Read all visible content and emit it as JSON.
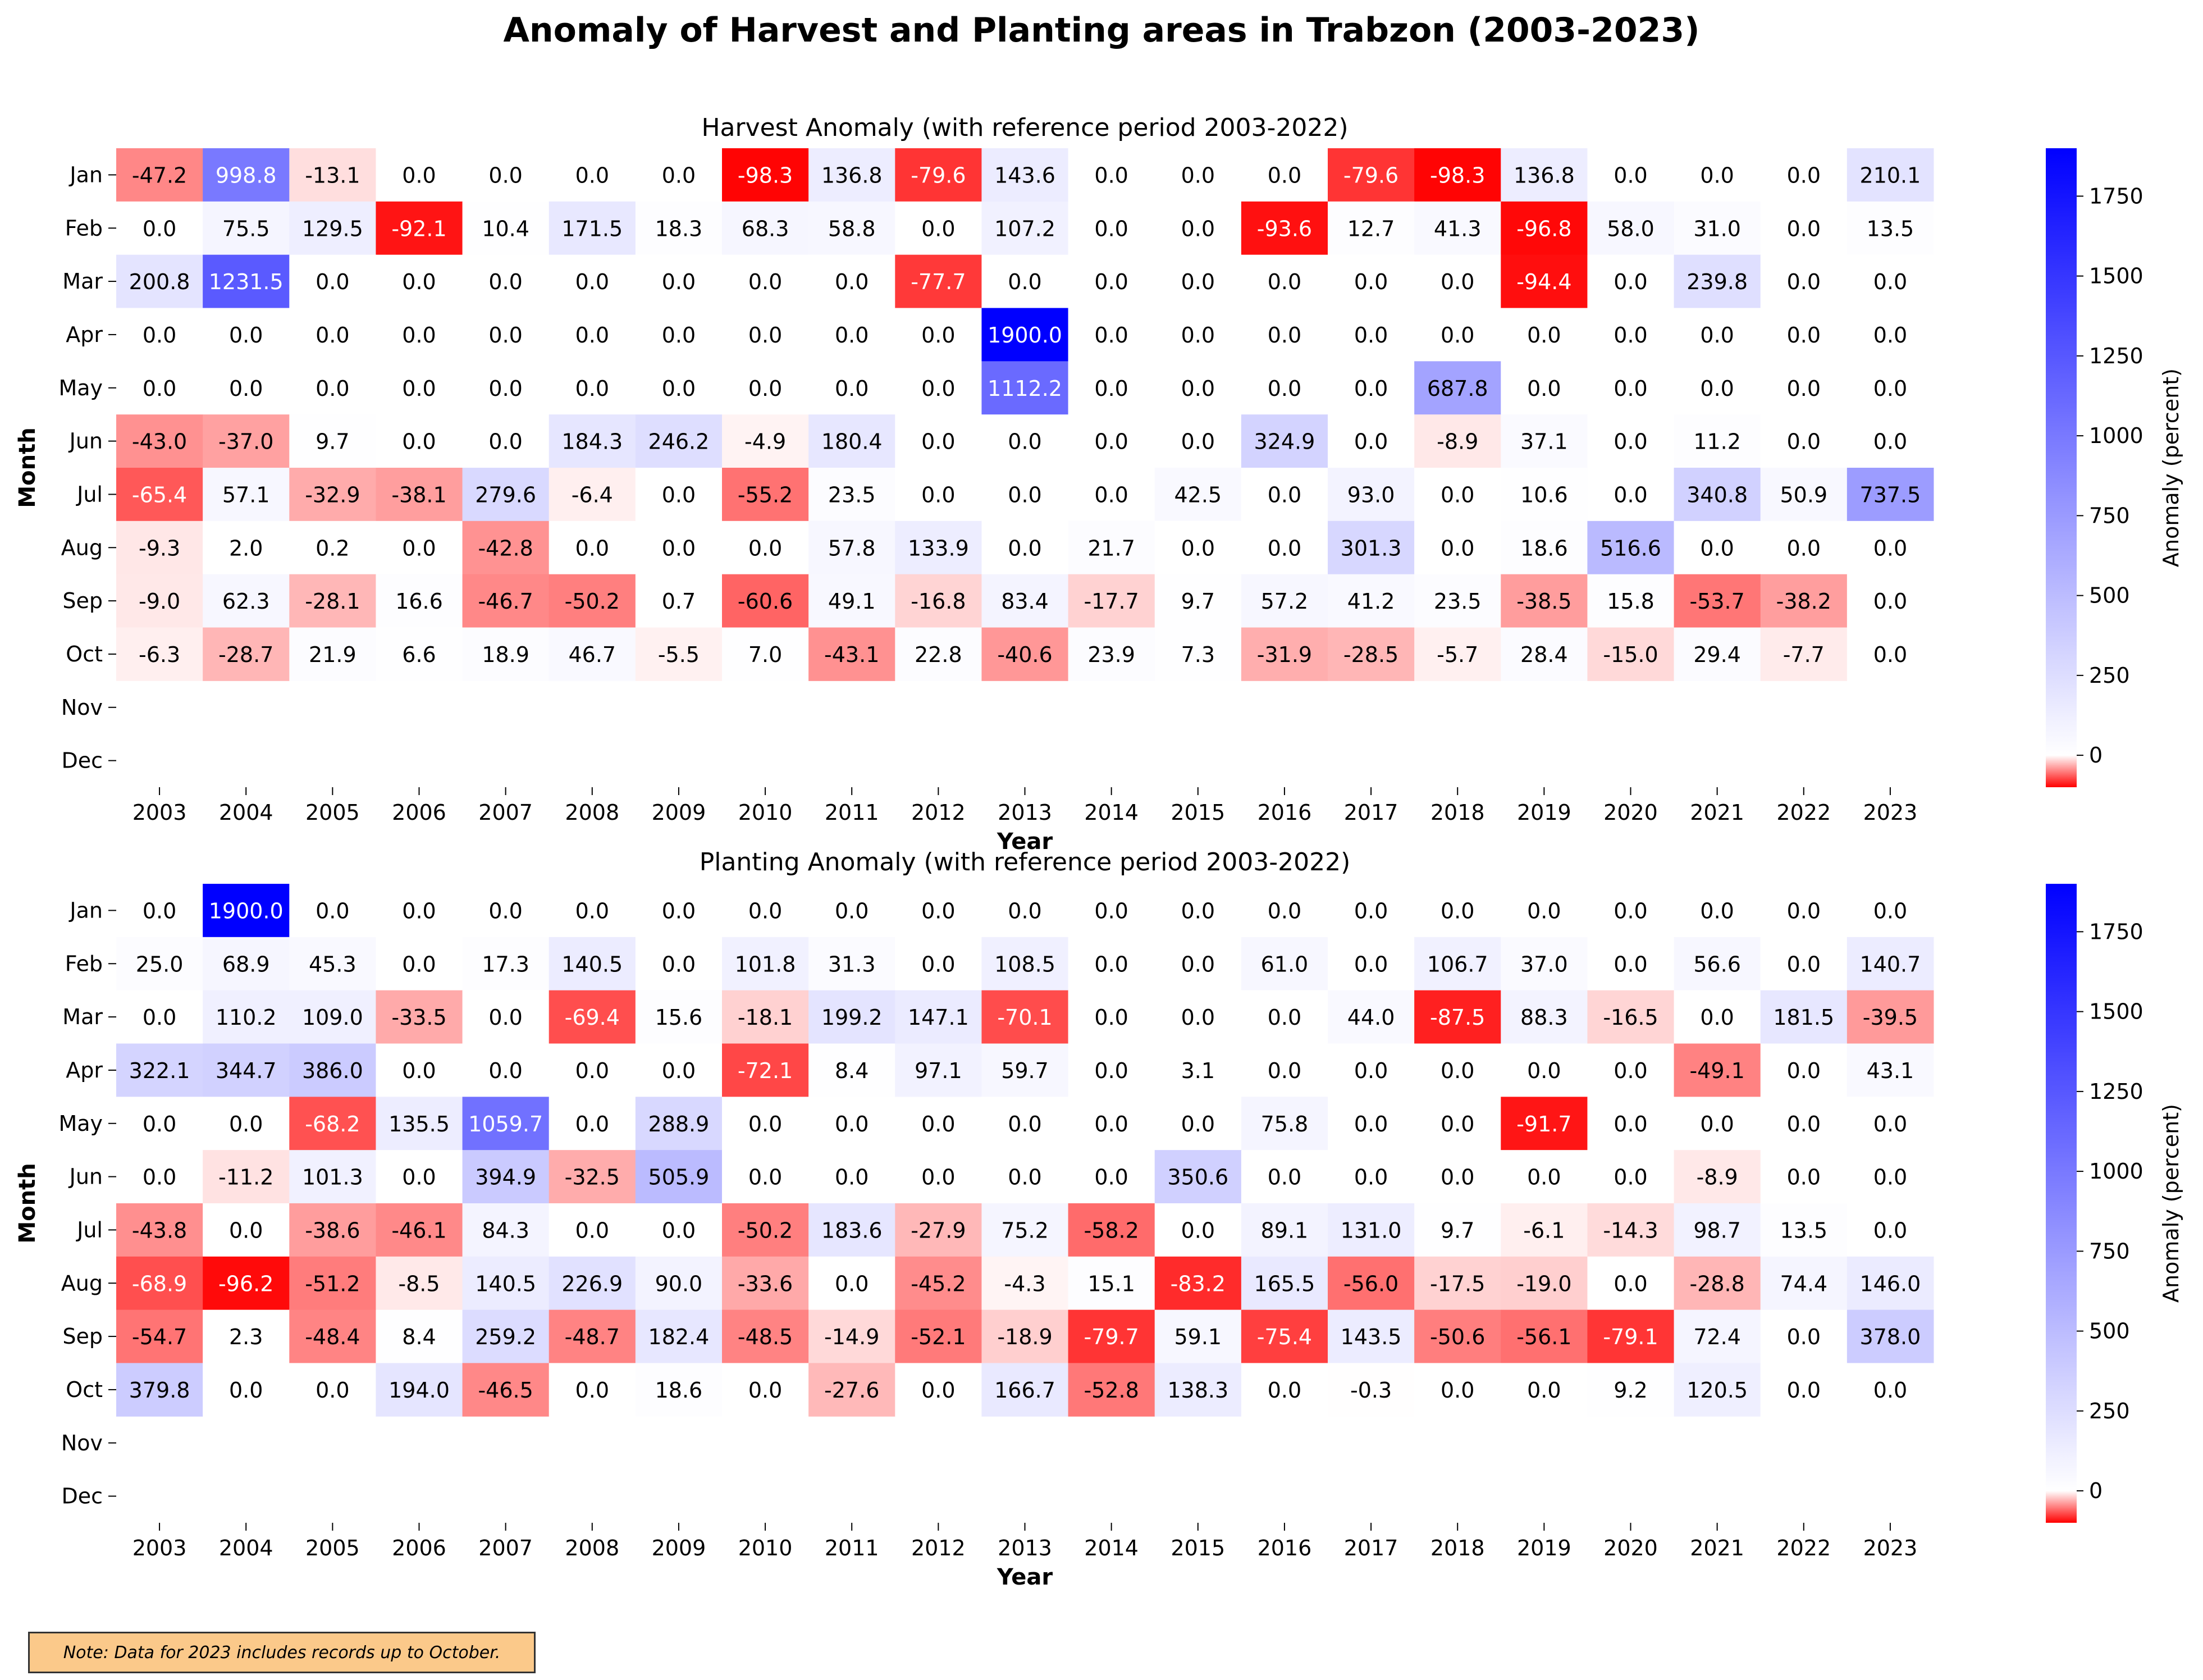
{
  "figure": {
    "title": "Anomaly of Harvest and Planting areas in Trabzon (2003-2023)",
    "note": "Note: Data for 2023 includes records up to October."
  },
  "colors": {
    "negative": "#ff0000",
    "zero": "#ffffff",
    "positive": "#0000ff"
  },
  "chart_data": [
    {
      "type": "heatmap",
      "title": "Harvest Anomaly (with reference period 2003-2022)",
      "xlabel": "Year",
      "ylabel": "Month",
      "colorbar_label": "Anomaly (percent)",
      "colorbar_ticks": [
        "0",
        "250",
        "500",
        "750",
        "1000",
        "1250",
        "1500",
        "1750"
      ],
      "vmin": -100,
      "vmax": 1900,
      "x": [
        "2003",
        "2004",
        "2005",
        "2006",
        "2007",
        "2008",
        "2009",
        "2010",
        "2011",
        "2012",
        "2013",
        "2014",
        "2015",
        "2016",
        "2017",
        "2018",
        "2019",
        "2020",
        "2021",
        "2022",
        "2023"
      ],
      "y": [
        "Jan",
        "Feb",
        "Mar",
        "Apr",
        "May",
        "Jun",
        "Jul",
        "Aug",
        "Sep",
        "Oct",
        "Nov",
        "Dec"
      ],
      "values": [
        [
          -47.2,
          998.8,
          -13.1,
          0.0,
          0.0,
          0.0,
          0.0,
          -98.3,
          136.8,
          -79.6,
          143.6,
          0.0,
          0.0,
          0.0,
          -79.6,
          -98.3,
          136.8,
          0.0,
          0.0,
          0.0,
          210.1
        ],
        [
          0.0,
          75.5,
          129.5,
          -92.1,
          10.4,
          171.5,
          18.3,
          68.3,
          58.8,
          0.0,
          107.2,
          0.0,
          0.0,
          -93.6,
          12.7,
          41.3,
          -96.8,
          58.0,
          31.0,
          0.0,
          13.5
        ],
        [
          200.8,
          1231.5,
          0.0,
          0.0,
          0.0,
          0.0,
          0.0,
          0.0,
          0.0,
          -77.7,
          0.0,
          0.0,
          0.0,
          0.0,
          0.0,
          0.0,
          -94.4,
          0.0,
          239.8,
          0.0,
          0.0
        ],
        [
          0.0,
          0.0,
          0.0,
          0.0,
          0.0,
          0.0,
          0.0,
          0.0,
          0.0,
          0.0,
          1900.0,
          0.0,
          0.0,
          0.0,
          0.0,
          0.0,
          0.0,
          0.0,
          0.0,
          0.0,
          0.0
        ],
        [
          0.0,
          0.0,
          0.0,
          0.0,
          0.0,
          0.0,
          0.0,
          0.0,
          0.0,
          0.0,
          1112.2,
          0.0,
          0.0,
          0.0,
          0.0,
          687.8,
          0.0,
          0.0,
          0.0,
          0.0,
          0.0
        ],
        [
          -43.0,
          -37.0,
          9.7,
          0.0,
          0.0,
          184.3,
          246.2,
          -4.9,
          180.4,
          0.0,
          0.0,
          0.0,
          0.0,
          324.9,
          0.0,
          -8.9,
          37.1,
          0.0,
          11.2,
          0.0,
          0.0
        ],
        [
          -65.4,
          57.1,
          -32.9,
          -38.1,
          279.6,
          -6.4,
          0.0,
          -55.2,
          23.5,
          0.0,
          0.0,
          0.0,
          42.5,
          0.0,
          93.0,
          0.0,
          10.6,
          0.0,
          340.8,
          50.9,
          737.5
        ],
        [
          -9.3,
          2.0,
          0.2,
          0.0,
          -42.8,
          0.0,
          0.0,
          0.0,
          57.8,
          133.9,
          0.0,
          21.7,
          0.0,
          0.0,
          301.3,
          0.0,
          18.6,
          516.6,
          0.0,
          0.0,
          0.0
        ],
        [
          -9.0,
          62.3,
          -28.1,
          16.6,
          -46.7,
          -50.2,
          0.7,
          -60.6,
          49.1,
          -16.8,
          83.4,
          -17.7,
          9.7,
          57.2,
          41.2,
          23.5,
          -38.5,
          15.8,
          -53.7,
          -38.2,
          0.0
        ],
        [
          -6.3,
          -28.7,
          21.9,
          6.6,
          18.9,
          46.7,
          -5.5,
          7.0,
          -43.1,
          22.8,
          -40.6,
          23.9,
          7.3,
          -31.9,
          -28.5,
          -5.7,
          28.4,
          -15.0,
          29.4,
          -7.7,
          0.0
        ],
        [
          null,
          null,
          null,
          null,
          null,
          null,
          null,
          null,
          null,
          null,
          null,
          null,
          null,
          null,
          null,
          null,
          null,
          null,
          null,
          null,
          null
        ],
        [
          null,
          null,
          null,
          null,
          null,
          null,
          null,
          null,
          null,
          null,
          null,
          null,
          null,
          null,
          null,
          null,
          null,
          null,
          null,
          null,
          null
        ]
      ]
    },
    {
      "type": "heatmap",
      "title": "Planting Anomaly (with reference period 2003-2022)",
      "xlabel": "Year",
      "ylabel": "Month",
      "colorbar_label": "Anomaly (percent)",
      "colorbar_ticks": [
        "0",
        "250",
        "500",
        "750",
        "1000",
        "1250",
        "1500",
        "1750"
      ],
      "vmin": -100,
      "vmax": 1900,
      "x": [
        "2003",
        "2004",
        "2005",
        "2006",
        "2007",
        "2008",
        "2009",
        "2010",
        "2011",
        "2012",
        "2013",
        "2014",
        "2015",
        "2016",
        "2017",
        "2018",
        "2019",
        "2020",
        "2021",
        "2022",
        "2023"
      ],
      "y": [
        "Jan",
        "Feb",
        "Mar",
        "Apr",
        "May",
        "Jun",
        "Jul",
        "Aug",
        "Sep",
        "Oct",
        "Nov",
        "Dec"
      ],
      "values": [
        [
          0.0,
          1900.0,
          0.0,
          0.0,
          0.0,
          0.0,
          0.0,
          0.0,
          0.0,
          0.0,
          0.0,
          0.0,
          0.0,
          0.0,
          0.0,
          0.0,
          0.0,
          0.0,
          0.0,
          0.0,
          0.0
        ],
        [
          25.0,
          68.9,
          45.3,
          0.0,
          17.3,
          140.5,
          0.0,
          101.8,
          31.3,
          0.0,
          108.5,
          0.0,
          0.0,
          61.0,
          0.0,
          106.7,
          37.0,
          0.0,
          56.6,
          0.0,
          140.7
        ],
        [
          0.0,
          110.2,
          109.0,
          -33.5,
          0.0,
          -69.4,
          15.6,
          -18.1,
          199.2,
          147.1,
          -70.1,
          0.0,
          0.0,
          0.0,
          44.0,
          -87.5,
          88.3,
          -16.5,
          0.0,
          181.5,
          -39.5
        ],
        [
          322.1,
          344.7,
          386.0,
          0.0,
          0.0,
          0.0,
          0.0,
          -72.1,
          8.4,
          97.1,
          59.7,
          0.0,
          3.1,
          0.0,
          0.0,
          0.0,
          0.0,
          0.0,
          -49.1,
          0.0,
          43.1
        ],
        [
          0.0,
          0.0,
          -68.2,
          135.5,
          1059.7,
          0.0,
          288.9,
          0.0,
          0.0,
          0.0,
          0.0,
          0.0,
          0.0,
          75.8,
          0.0,
          0.0,
          -91.7,
          0.0,
          0.0,
          0.0,
          0.0
        ],
        [
          0.0,
          -11.2,
          101.3,
          0.0,
          394.9,
          -32.5,
          505.9,
          0.0,
          0.0,
          0.0,
          0.0,
          0.0,
          350.6,
          0.0,
          0.0,
          0.0,
          0.0,
          0.0,
          -8.9,
          0.0,
          0.0
        ],
        [
          -43.8,
          0.0,
          -38.6,
          -46.1,
          84.3,
          0.0,
          0.0,
          -50.2,
          183.6,
          -27.9,
          75.2,
          -58.2,
          0.0,
          89.1,
          131.0,
          9.7,
          -6.1,
          -14.3,
          98.7,
          13.5,
          0.0
        ],
        [
          -68.9,
          -96.2,
          -51.2,
          -8.5,
          140.5,
          226.9,
          90.0,
          -33.6,
          0.0,
          -45.2,
          -4.3,
          15.1,
          -83.2,
          165.5,
          -56.0,
          -17.5,
          -19.0,
          0.0,
          -28.8,
          74.4,
          146.0
        ],
        [
          -54.7,
          2.3,
          -48.4,
          8.4,
          259.2,
          -48.7,
          182.4,
          -48.5,
          -14.9,
          -52.1,
          -18.9,
          -79.7,
          59.1,
          -75.4,
          143.5,
          -50.6,
          -56.1,
          -79.1,
          72.4,
          0.0,
          378.0
        ],
        [
          379.8,
          0.0,
          0.0,
          194.0,
          -46.5,
          0.0,
          18.6,
          0.0,
          -27.6,
          0.0,
          166.7,
          -52.8,
          138.3,
          0.0,
          -0.3,
          0.0,
          0.0,
          9.2,
          120.5,
          0.0,
          0.0
        ],
        [
          null,
          null,
          null,
          null,
          null,
          null,
          null,
          null,
          null,
          null,
          null,
          null,
          null,
          null,
          null,
          null,
          null,
          null,
          null,
          null,
          null
        ],
        [
          null,
          null,
          null,
          null,
          null,
          null,
          null,
          null,
          null,
          null,
          null,
          null,
          null,
          null,
          null,
          null,
          null,
          null,
          null,
          null,
          null
        ]
      ]
    }
  ]
}
